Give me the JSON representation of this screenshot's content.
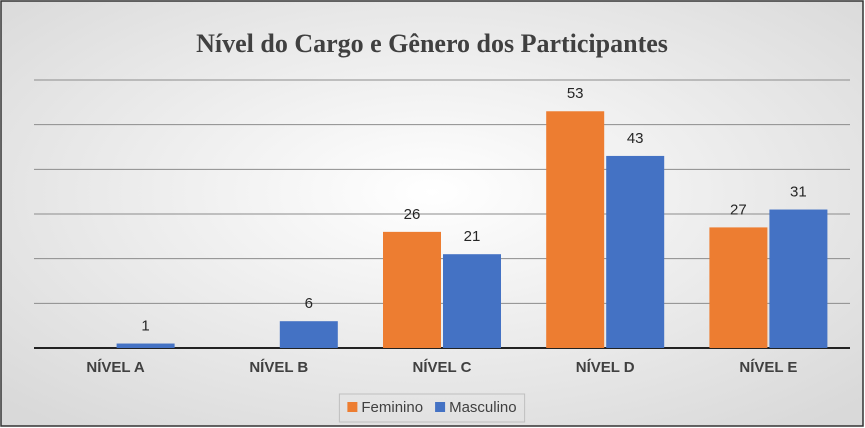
{
  "chart_data": {
    "type": "bar",
    "title": "Nível do Cargo e Gênero dos Participantes",
    "categories": [
      "NÍVEL A",
      "NÍVEL B",
      "NÍVEL C",
      "NÍVEL D",
      "NÍVEL E"
    ],
    "series": [
      {
        "name": "Feminino",
        "color": "#ed7d31",
        "values": [
          null,
          null,
          26,
          53,
          27
        ]
      },
      {
        "name": "Masculino",
        "color": "#4472c4",
        "values": [
          1,
          6,
          21,
          43,
          31
        ]
      }
    ],
    "ylim": [
      0,
      60
    ],
    "yticks": [
      0,
      10,
      20,
      30,
      40,
      50,
      60
    ],
    "grid": true,
    "legend": "bottom"
  }
}
